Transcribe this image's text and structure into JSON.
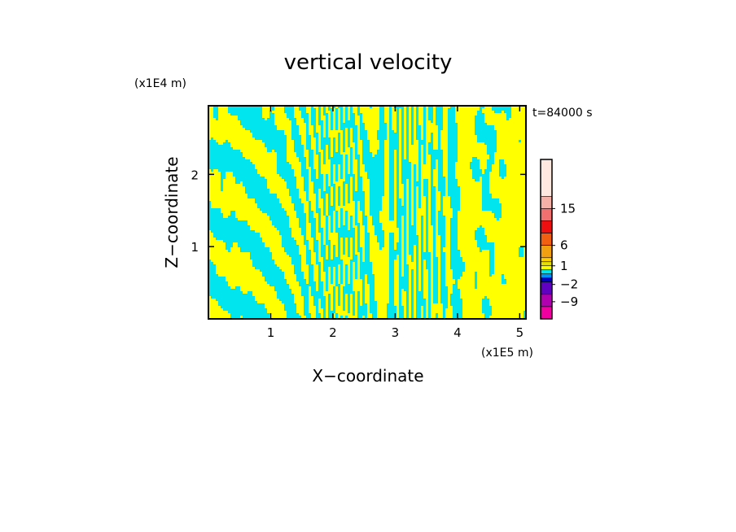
{
  "chart_data": {
    "type": "heatmap",
    "title": "vertical velocity",
    "xlabel": "X−coordinate",
    "ylabel": "Z−coordinate",
    "x_unit": "(x1E5 m)",
    "y_unit": "(x1E4 m)",
    "time_label": "t=84000 s",
    "xlim": [
      0,
      5.1
    ],
    "ylim": [
      0,
      2.95
    ],
    "x_ticks": [
      1,
      2,
      3,
      4,
      5
    ],
    "y_ticks": [
      1,
      2
    ],
    "x_tick_labels": [
      "1",
      "2",
      "3",
      "4",
      "5"
    ],
    "y_tick_labels": [
      "1",
      "2"
    ],
    "field_colors": {
      "positive": "#ffff00",
      "negative": "#00e5ee"
    },
    "colorbar": {
      "range": [
        -12,
        24
      ],
      "bands": [
        {
          "from": 18,
          "to": 24,
          "color": "#ffe8e0"
        },
        {
          "from": 15,
          "to": 18,
          "color": "#f5b0a8"
        },
        {
          "from": 12,
          "to": 15,
          "color": "#f07070"
        },
        {
          "from": 9,
          "to": 12,
          "color": "#ee1010"
        },
        {
          "from": 6,
          "to": 9,
          "color": "#f06010"
        },
        {
          "from": 3,
          "to": 6,
          "color": "#f0a010"
        },
        {
          "from": 2,
          "to": 3,
          "color": "#ffd000"
        },
        {
          "from": 1,
          "to": 2,
          "color": "#e8e000"
        },
        {
          "from": 0,
          "to": 1,
          "color": "#ffff00"
        },
        {
          "from": -1,
          "to": 0,
          "color": "#00e5ee"
        },
        {
          "from": -2,
          "to": -1,
          "color": "#0090ff"
        },
        {
          "from": -3,
          "to": -2,
          "color": "#0000c0"
        },
        {
          "from": -6,
          "to": -3,
          "color": "#6000c0"
        },
        {
          "from": -9,
          "to": -6,
          "color": "#b000b0"
        },
        {
          "from": -12,
          "to": -9,
          "color": "#f000a0"
        }
      ],
      "labels": [
        "15",
        "6",
        "1",
        "−2",
        "−9"
      ],
      "label_values": [
        15,
        6,
        1,
        -2.5,
        -9
      ]
    }
  }
}
